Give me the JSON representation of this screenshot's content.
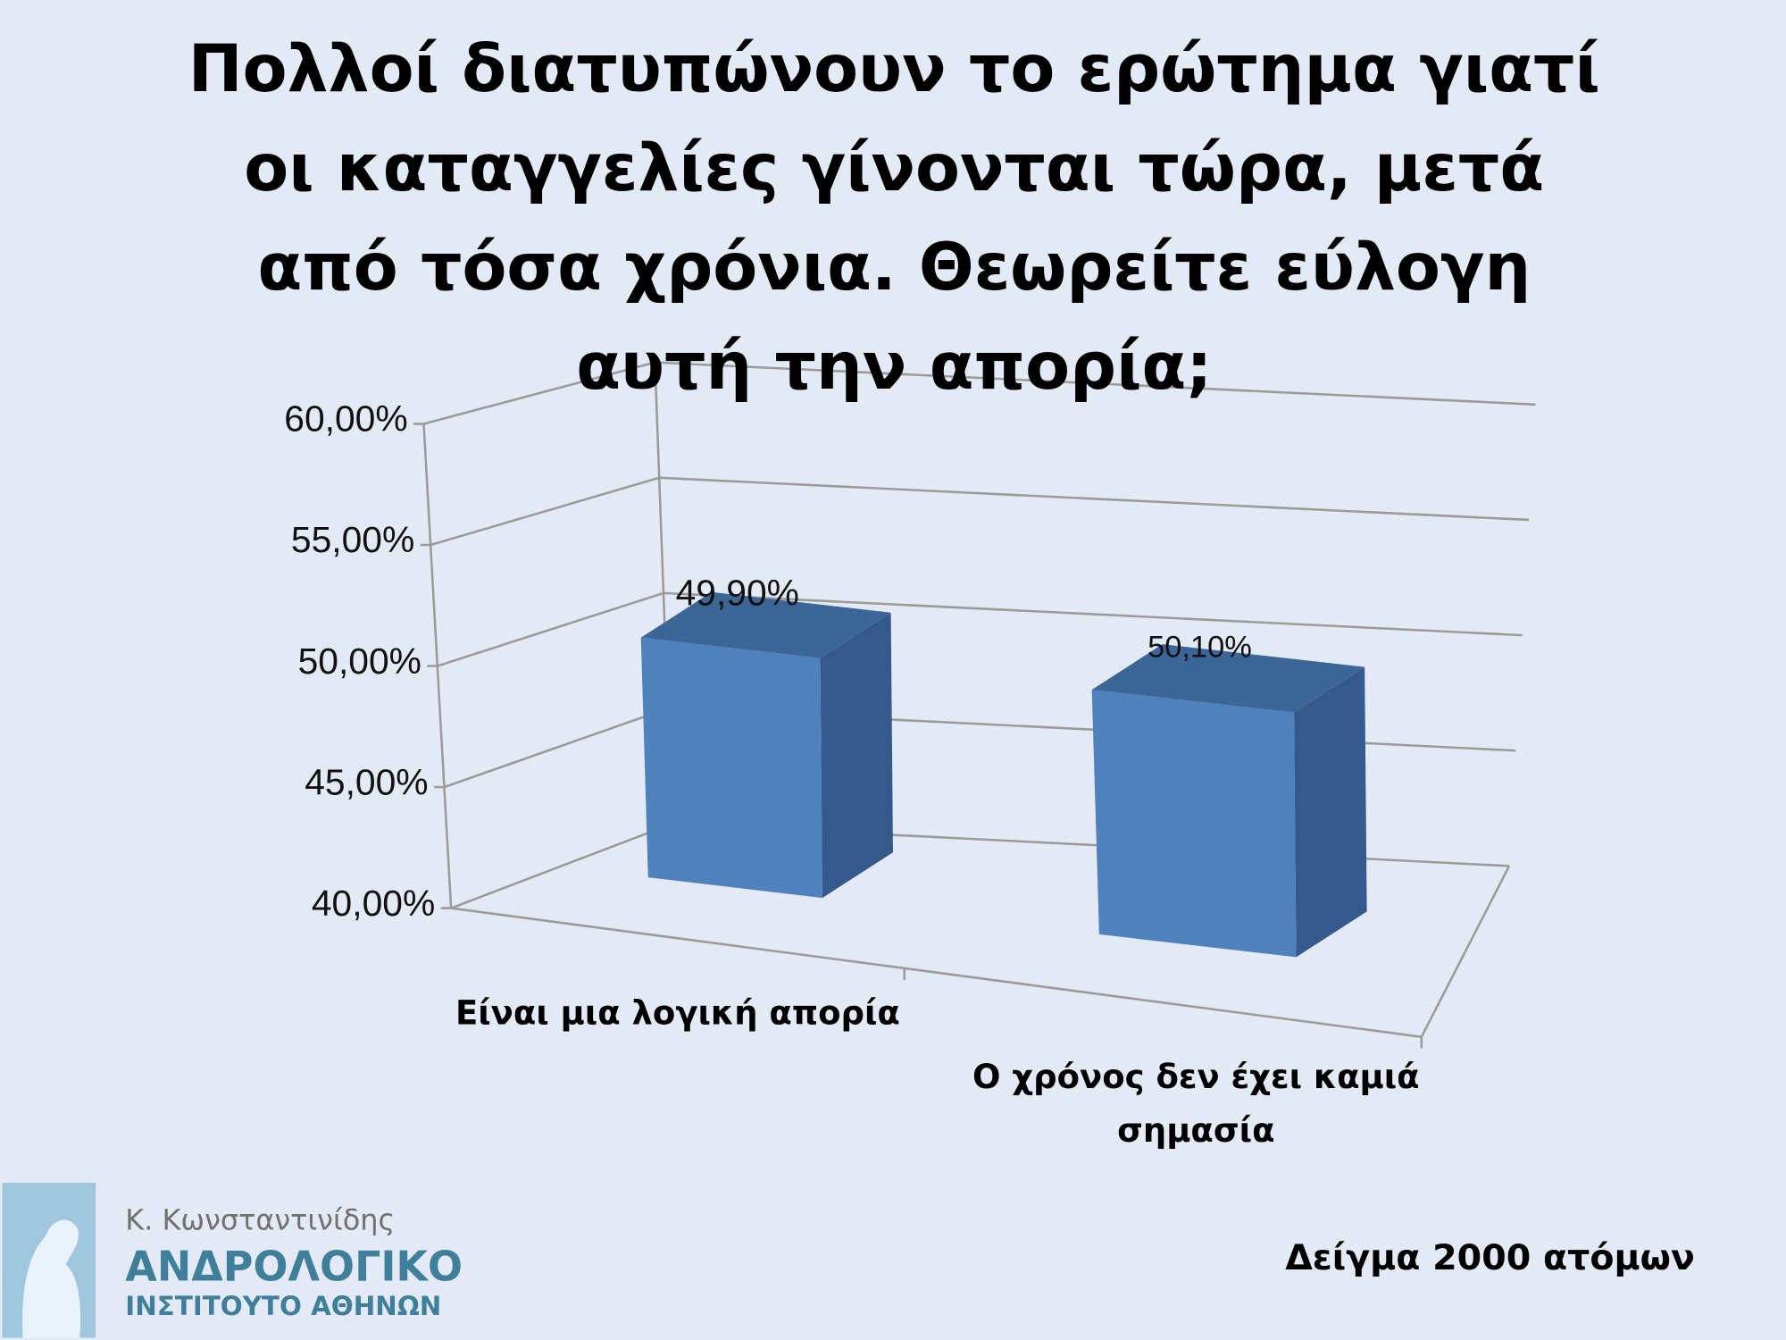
{
  "chart_data": {
    "type": "bar3d",
    "title": "Πολλοί διατυπώνουν το ερώτημα γιατί οι καταγγελίες γίνονται τώρα, μετά από τόσα χρόνια. Θεωρείτε εύλογη αυτή την απορία;",
    "categories": [
      "Είναι μια λογική απορία",
      "Ο χρόνος δεν έχει καμιά σημασία"
    ],
    "values": [
      49.9,
      50.1
    ],
    "value_labels": [
      "49,90%",
      "50,10%"
    ],
    "color": "#4f81bd",
    "ylim": [
      40,
      60
    ],
    "yticks": [
      {
        "value": 40,
        "label": "40,00%"
      },
      {
        "value": 45,
        "label": "45,00%"
      },
      {
        "value": 50,
        "label": "50,00%"
      },
      {
        "value": 55,
        "label": "55,00%"
      },
      {
        "value": 60,
        "label": "60,00%"
      }
    ],
    "grid": true,
    "annotation": "Δείγμα 2000 ατόμων"
  },
  "logo": {
    "name": "Κ. Κωνσταντινίδης",
    "line1": "ΑΝΔΡΟΛΟΓΙΚΟ",
    "line2": "ΙΝΣΤΙΤΟΥΤΟ ΑΘΗΝΩΝ"
  }
}
